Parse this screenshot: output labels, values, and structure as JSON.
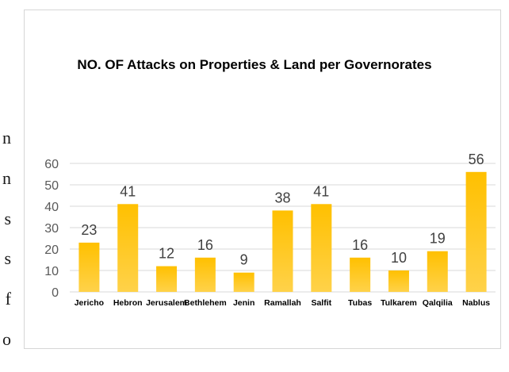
{
  "edge_text": [
    "n",
    "n",
    "s",
    "s",
    "f",
    "o"
  ],
  "colors": {
    "bar_top": "#FFC000",
    "bar_bottom": "#FFD24A",
    "gridline": "#D9D9D9",
    "axis_text": "#595959"
  },
  "chart_data": {
    "type": "bar",
    "title": "NO. OF Attacks on Properties & Land per Governorates",
    "categories": [
      "Jericho",
      "Hebron",
      "Jerusalem",
      "Bethlehem",
      "Jenin",
      "Ramallah",
      "Salfit",
      "Tubas",
      "Tulkarem",
      "Qalqilia",
      "Nablus"
    ],
    "values": [
      23,
      41,
      12,
      16,
      9,
      38,
      41,
      16,
      10,
      19,
      56
    ],
    "ylim": [
      0,
      60
    ],
    "yticks": [
      0,
      10,
      20,
      30,
      40,
      50,
      60
    ],
    "grid": true,
    "legend": "none",
    "data_labels": true
  }
}
